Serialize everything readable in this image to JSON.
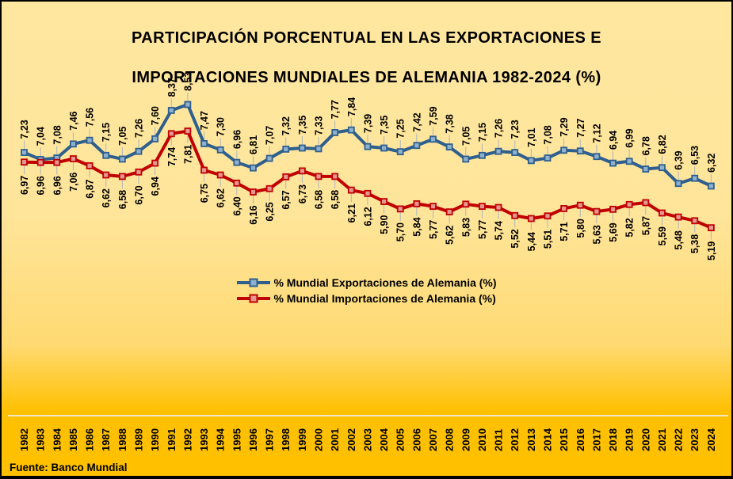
{
  "title": {
    "lines": [
      "PARTICIPACIÓN PORCENTUAL EN LAS EXPORTACIONES E",
      "IMPORTACIONES MUNDIALES DE ALEMANIA 1982-2024 (%)"
    ]
  },
  "source_note": "Fuente: Banco Mundial",
  "style": {
    "bg_top": "#FFE7A0",
    "bg_bottom": "#FFC000",
    "export_line": "#2E5F8E",
    "export_marker_fill": "#8FB1CD",
    "import_line": "#C00000",
    "import_marker_fill": "#E59891",
    "leader_line": "#A9B4BF",
    "axis_line": "#F1E7CB",
    "label_text": "#000000"
  },
  "chart_data": {
    "type": "line",
    "title": "PARTICIPACIÓN PORCENTUAL EN LAS EXPORTACIONES E IMPORTACIONES MUNDIALES DE ALEMANIA 1982-2024 (%)",
    "xlabel": "",
    "ylabel": "",
    "grid": "off",
    "legend_position": "center-below-plot",
    "decimal_separator": ",",
    "data_labels": true,
    "ylim_implied": [
      5.0,
      8.8
    ],
    "x": [
      1982,
      1983,
      1984,
      1985,
      1986,
      1987,
      1988,
      1989,
      1990,
      1991,
      1992,
      1993,
      1994,
      1995,
      1996,
      1997,
      1998,
      1999,
      2000,
      2001,
      2002,
      2003,
      2004,
      2005,
      2006,
      2007,
      2008,
      2009,
      2010,
      2011,
      2012,
      2013,
      2014,
      2015,
      2016,
      2017,
      2018,
      2019,
      2020,
      2021,
      2022,
      2023,
      2024
    ],
    "series": [
      {
        "name": "% Mundial Exportaciones de Alemania (%)",
        "color": "#2E5F8E",
        "values": [
          7.23,
          7.04,
          7.08,
          7.46,
          7.56,
          7.15,
          7.05,
          7.26,
          7.6,
          8.37,
          8.53,
          7.47,
          7.3,
          6.96,
          6.81,
          7.07,
          7.32,
          7.35,
          7.33,
          7.77,
          7.84,
          7.39,
          7.35,
          7.25,
          7.42,
          7.59,
          7.38,
          7.05,
          7.15,
          7.26,
          7.23,
          7.01,
          7.08,
          7.29,
          7.27,
          7.12,
          6.94,
          6.99,
          6.78,
          6.82,
          6.39,
          6.53,
          6.32
        ]
      },
      {
        "name": "% Mundial Importaciones de Alemania (%)",
        "color": "#C00000",
        "values": [
          6.97,
          6.96,
          6.96,
          7.06,
          6.87,
          6.62,
          6.58,
          6.7,
          6.94,
          7.74,
          7.81,
          6.75,
          6.62,
          6.4,
          6.16,
          6.25,
          6.57,
          6.73,
          6.58,
          6.58,
          6.21,
          6.12,
          5.9,
          5.7,
          5.84,
          5.77,
          5.62,
          5.83,
          5.77,
          5.74,
          5.52,
          5.44,
          5.51,
          5.71,
          5.8,
          5.63,
          5.69,
          5.82,
          5.87,
          5.59,
          5.48,
          5.38,
          5.19
        ]
      }
    ],
    "source": "Fuente: Banco Mundial"
  }
}
